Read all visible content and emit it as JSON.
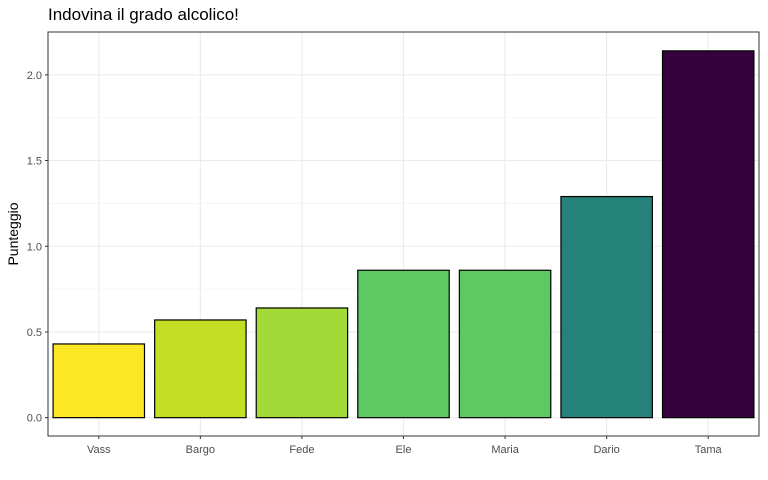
{
  "chart_data": {
    "type": "bar",
    "title": "Indovina il grado alcolico!",
    "xlabel": "",
    "ylabel": "Punteggio",
    "categories": [
      "Vass",
      "Bargo",
      "Fede",
      "Ele",
      "Maria",
      "Dario",
      "Tama"
    ],
    "values": [
      0.43,
      0.57,
      0.64,
      0.86,
      0.86,
      1.29,
      2.14
    ],
    "colors": [
      "#FDE725",
      "#C2DF23",
      "#A2DA37",
      "#5EC962",
      "#5EC962",
      "#25827A",
      "#35023D"
    ],
    "ylim": [
      -0.107,
      2.25
    ],
    "yticks": [
      0.0,
      0.5,
      1.0,
      1.5,
      2.0
    ],
    "ytick_labels": [
      "0.0",
      "0.5",
      "1.0",
      "1.5",
      "2.0"
    ],
    "grid": true,
    "legend": "none"
  }
}
